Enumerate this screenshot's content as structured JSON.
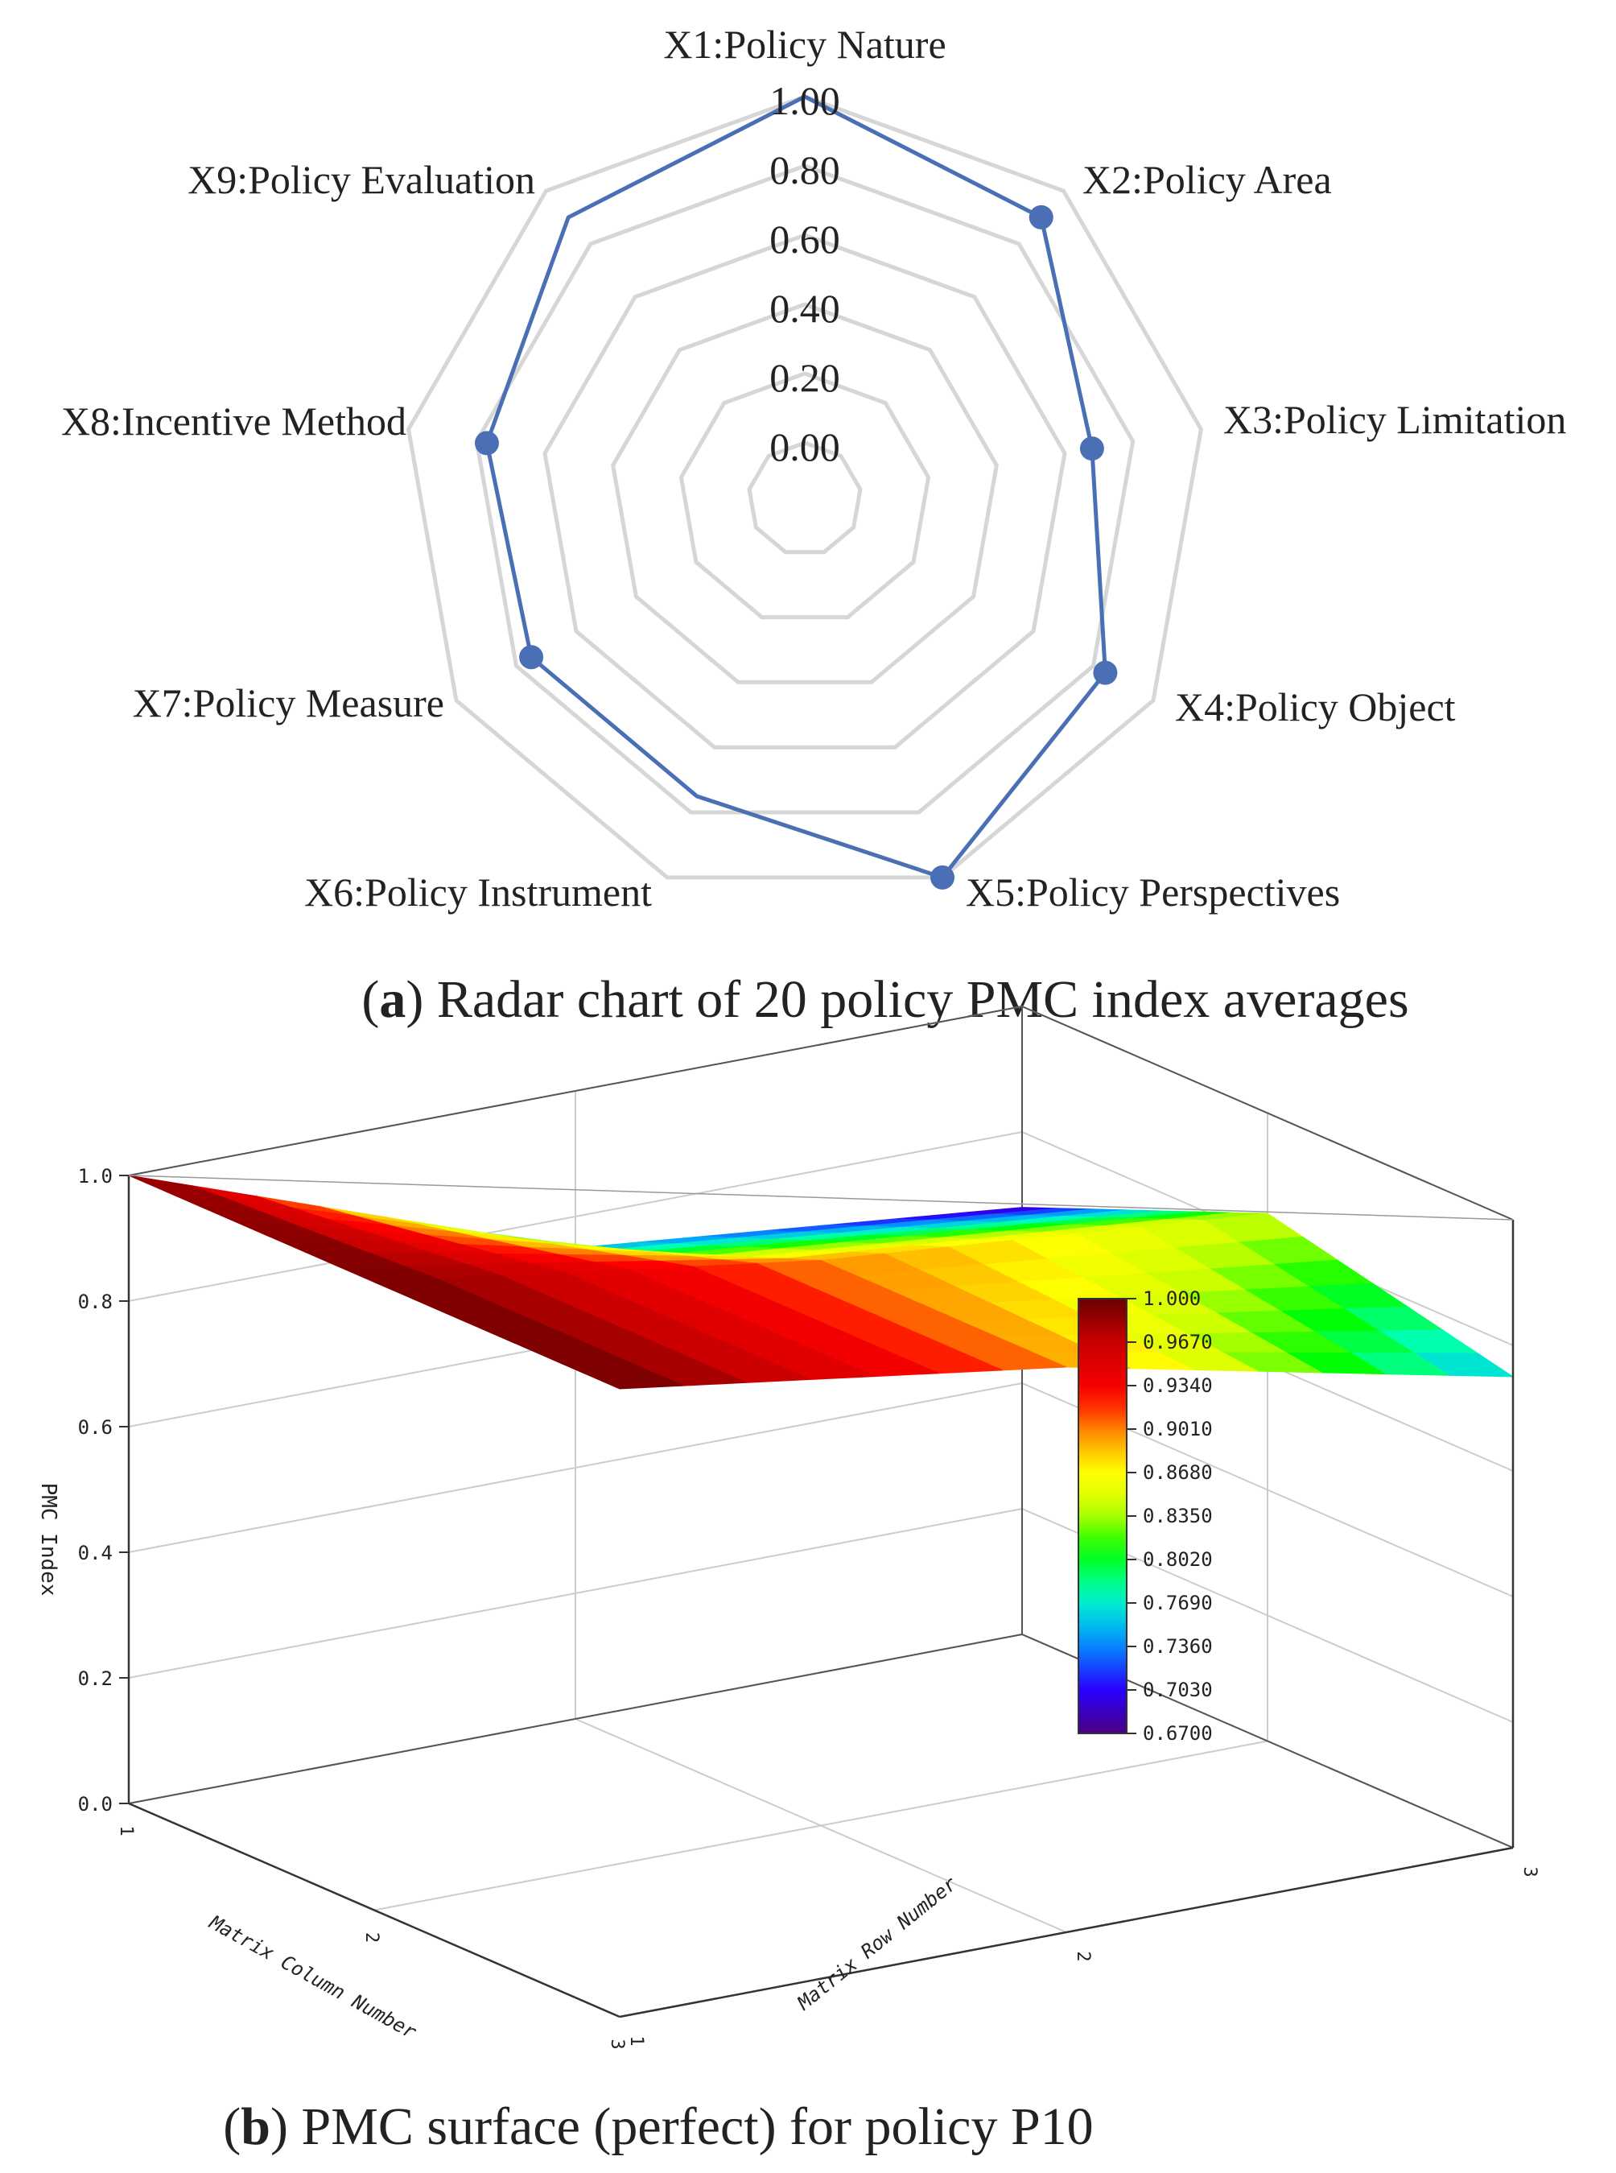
{
  "colors": {
    "radar_series": "#4a6fb5",
    "radar_grid": "#d6d6d6",
    "axis": "#333333",
    "grid3d": "#cccccc"
  },
  "chart_data": [
    {
      "type": "radar",
      "caption_letter": "a",
      "caption_text": " Radar chart of 20 policy PMC index averages",
      "axes": [
        "X1:Policy Nature",
        "X2:Policy Area",
        "X3:Policy Limitation",
        "X4:Policy Object",
        "X5:Policy Perspectives",
        "X6:Policy Instrument",
        "X7:Policy Measure",
        "X8:Incentive Method",
        "X9:Policy Evaluation"
      ],
      "values": [
        1.0,
        0.9,
        0.68,
        0.84,
        1.0,
        0.75,
        0.75,
        0.77,
        0.9
      ],
      "rlim": [
        0,
        1
      ],
      "tick_values": [
        0.0,
        0.2,
        0.4,
        0.6,
        0.8,
        1.0
      ],
      "tick_labels": [
        "0.00",
        "0.20",
        "0.40",
        "0.60",
        "0.80",
        "1.00"
      ]
    },
    {
      "type": "surface3d",
      "caption_letter": "b",
      "caption_text": " PMC surface (perfect) for policy P10",
      "zlabel": "PMC Index",
      "xlabel": "Matrix Column Number",
      "ylabel": "Matrix Row Number",
      "zlim": [
        0,
        1
      ],
      "z_ticks": [
        "0.0",
        "0.2",
        "0.4",
        "0.6",
        "0.8",
        "1.0"
      ],
      "x_ticks": [
        "1",
        "2",
        "3"
      ],
      "y_ticks": [
        "1",
        "2",
        "3"
      ],
      "matrix": [
        [
          1.0,
          1.0,
          1.0
        ],
        [
          0.75,
          0.9,
          0.9
        ],
        [
          0.68,
          0.84,
          0.75
        ]
      ],
      "colorbar": {
        "min": 0.67,
        "max": 1.0,
        "labels": [
          "1.000",
          "0.9670",
          "0.9340",
          "0.9010",
          "0.8680",
          "0.8350",
          "0.8020",
          "0.7690",
          "0.7360",
          "0.7030",
          "0.6700"
        ]
      }
    }
  ]
}
